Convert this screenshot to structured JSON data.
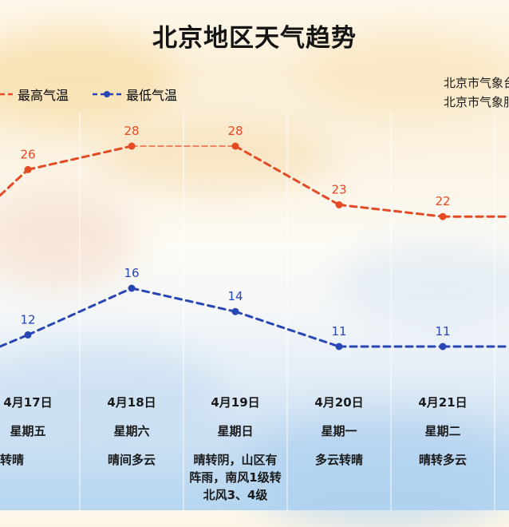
{
  "title": "北京地区天气趋势",
  "legend": {
    "high": "最高气温",
    "low": "最低气温"
  },
  "source": [
    "北京市气象台",
    "北京市气象服"
  ],
  "colors": {
    "high": "#e64a25",
    "low": "#2846b4"
  },
  "chart_data": {
    "type": "line",
    "title": "北京地区天气趋势",
    "categories": [
      "",
      "4月17日",
      "4月18日",
      "4月19日",
      "4月20日",
      "4月21日",
      ""
    ],
    "series": [
      {
        "name": "最高气温",
        "values": [
          null,
          26,
          28,
          28,
          23,
          22,
          null
        ],
        "labels": [
          "",
          "26",
          "28",
          "28",
          "23",
          "22",
          ""
        ]
      },
      {
        "name": "最低气温",
        "values": [
          null,
          12,
          16,
          14,
          11,
          11,
          null
        ],
        "labels": [
          "",
          "12",
          "16",
          "14",
          "11",
          "11",
          ""
        ]
      }
    ],
    "weekday": [
      "",
      "星期五",
      "星期六",
      "星期日",
      "星期一",
      "星期二",
      ""
    ],
    "weather": [
      "",
      "多云转晴",
      "晴间多云",
      "晴转阴，山区有阵雨，南风1级转北风3、4级",
      "多云转晴",
      "晴转多云",
      ""
    ]
  },
  "days": [
    {
      "date": "4月17日",
      "weekday": "星期五",
      "weather": "多云转晴"
    },
    {
      "date": "4月18日",
      "weekday": "星期六",
      "weather": "晴间多云"
    },
    {
      "date": "4月19日",
      "weekday": "星期日",
      "weather": "晴转阴，山区有阵雨，南风1级转北风3、4级"
    },
    {
      "date": "4月20日",
      "weekday": "星期一",
      "weather": "多云转晴"
    },
    {
      "date": "4月21日",
      "weekday": "星期二",
      "weather": "晴转多云"
    }
  ]
}
